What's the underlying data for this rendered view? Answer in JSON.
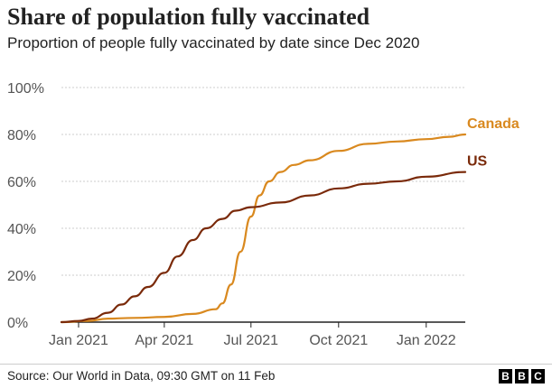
{
  "title": "Share of population fully vaccinated",
  "subtitle": "Proportion of people fully vaccinated by date since Dec 2020",
  "source": "Source: Our World in Data, 09:30 GMT on 11 Feb",
  "logo": {
    "letters": [
      "B",
      "B",
      "C"
    ],
    "color": "#000000"
  },
  "colors": {
    "canada": "#d9891f",
    "us": "#7a2a0a",
    "grid": "#cccccc",
    "axis": "#222222"
  },
  "chart_data": {
    "type": "line",
    "title": "Share of population fully vaccinated",
    "subtitle": "Proportion of people fully vaccinated by date since Dec 2020",
    "xlabel": "",
    "ylabel": "",
    "x_unit": "date",
    "xlim": [
      "2020-12-14",
      "2022-02-11"
    ],
    "ylim": [
      0,
      100
    ],
    "y_ticks": [
      0,
      20,
      40,
      60,
      80,
      100
    ],
    "y_tick_labels": [
      "0%",
      "20%",
      "40%",
      "60%",
      "80%",
      "100%"
    ],
    "x_ticks": [
      "2021-01-01",
      "2021-04-01",
      "2021-07-01",
      "2021-10-01",
      "2022-01-01"
    ],
    "x_tick_labels": [
      "Jan 2021",
      "Apr 2021",
      "Jul 2021",
      "Oct 2021",
      "Jan 2022"
    ],
    "grid": true,
    "legend": "direct labels at line ends",
    "series": [
      {
        "name": "Canada",
        "color": "#d9891f",
        "x": [
          "2020-12-14",
          "2021-01-10",
          "2021-02-01",
          "2021-03-01",
          "2021-04-01",
          "2021-05-01",
          "2021-05-25",
          "2021-06-01",
          "2021-06-10",
          "2021-06-20",
          "2021-07-01",
          "2021-07-10",
          "2021-07-20",
          "2021-08-01",
          "2021-08-15",
          "2021-09-01",
          "2021-10-01",
          "2021-11-01",
          "2021-12-01",
          "2022-01-01",
          "2022-01-25",
          "2022-02-11"
        ],
        "values": [
          0,
          0.5,
          1.5,
          1.8,
          2.2,
          3.5,
          5.5,
          8,
          16,
          30,
          45,
          54,
          60,
          64,
          67,
          69,
          73,
          76,
          77,
          78,
          79,
          80
        ]
      },
      {
        "name": "US",
        "color": "#7a2a0a",
        "x": [
          "2020-12-14",
          "2021-01-01",
          "2021-01-15",
          "2021-02-01",
          "2021-02-15",
          "2021-03-01",
          "2021-03-15",
          "2021-04-01",
          "2021-04-15",
          "2021-05-01",
          "2021-05-15",
          "2021-06-01",
          "2021-06-15",
          "2021-07-01",
          "2021-08-01",
          "2021-09-01",
          "2021-10-01",
          "2021-11-01",
          "2021-12-01",
          "2022-01-01",
          "2022-02-11"
        ],
        "values": [
          0,
          0.5,
          1.5,
          4,
          7.5,
          11,
          15,
          21,
          28,
          35,
          40,
          44,
          47.5,
          49,
          51,
          54,
          57,
          59,
          60,
          62,
          64
        ]
      }
    ]
  }
}
